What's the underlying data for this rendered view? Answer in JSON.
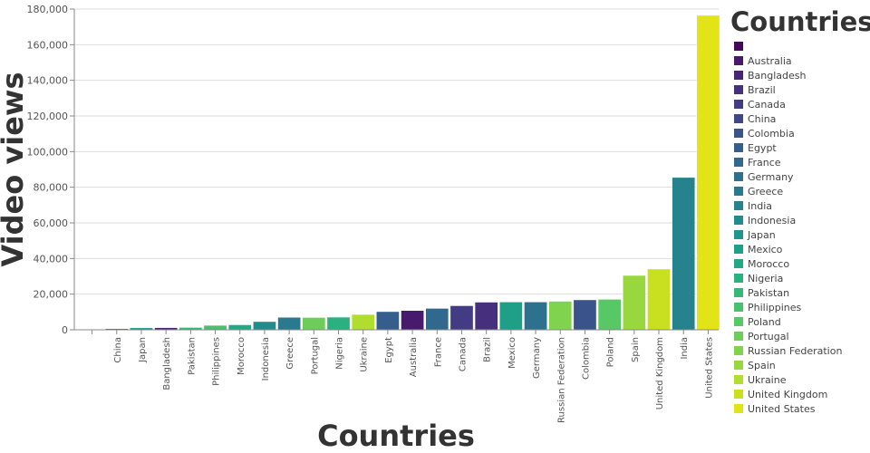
{
  "chart_data": {
    "type": "bar",
    "xlabel": "Countries",
    "ylabel": "Video views",
    "ylim": [
      0,
      180000
    ],
    "yticks": [
      0,
      20000,
      40000,
      60000,
      80000,
      100000,
      120000,
      140000,
      160000,
      180000
    ],
    "ytick_labels": [
      "0",
      "20,000",
      "40,000",
      "60,000",
      "80,000",
      "100,000",
      "120,000",
      "140,000",
      "160,000",
      "180,000"
    ],
    "grid": true,
    "categories": [
      "",
      "China",
      "Japan",
      "Bangladesh",
      "Pakistan",
      "Philippines",
      "Morocco",
      "Indonesia",
      "Greece",
      "Portugal",
      "Nigeria",
      "Ukraine",
      "Egypt",
      "Australia",
      "France",
      "Canada",
      "Brazil",
      "Mexico",
      "Germany",
      "Russian Federation",
      "Colombia",
      "Poland",
      "Spain",
      "United Kingdom",
      "India",
      "United States"
    ],
    "values": [
      0,
      600,
      1100,
      1200,
      1300,
      2500,
      2800,
      4600,
      7000,
      6900,
      7100,
      8600,
      10200,
      10800,
      12000,
      13500,
      15500,
      15600,
      15600,
      16000,
      16800,
      17100,
      30500,
      34100,
      85500,
      176500
    ],
    "legend": {
      "title": "Countries",
      "placement": "right",
      "entries": [
        "",
        "Australia",
        "Bangladesh",
        "Brazil",
        "Canada",
        "China",
        "Colombia",
        "Egypt",
        "France",
        "Germany",
        "Greece",
        "India",
        "Indonesia",
        "Japan",
        "Mexico",
        "Morocco",
        "Nigeria",
        "Pakistan",
        "Philippines",
        "Poland",
        "Portugal",
        "Russian Federation",
        "Spain",
        "Ukraine",
        "United Kingdom",
        "United States"
      ],
      "colors": [
        "#46085c",
        "#471a6d",
        "#482576",
        "#46307e",
        "#433b84",
        "#3f4788",
        "#3a538b",
        "#355e8d",
        "#31688e",
        "#2d718e",
        "#297a8e",
        "#26838e",
        "#228c8d",
        "#20958b",
        "#1f9f88",
        "#22a884",
        "#2bb07f",
        "#37b878",
        "#48c16e",
        "#58c765",
        "#6ccd5a",
        "#80d34d",
        "#98d83e",
        "#b0dd2f",
        "#c8e020",
        "#e2e418"
      ]
    }
  }
}
